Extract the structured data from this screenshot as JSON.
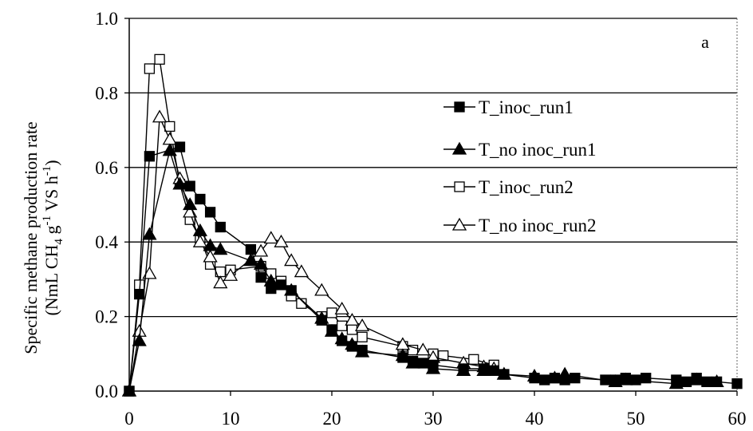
{
  "chart_data": {
    "type": "line",
    "panel_label": "a",
    "ylabel_line1": "Specific methane production rate",
    "ylabel_line2_parts": [
      "(NmL CH",
      "4",
      " g",
      "-1",
      " VS h",
      "-1",
      ")"
    ],
    "xlim": [
      0,
      60
    ],
    "ylim": [
      0,
      1.0
    ],
    "x_ticks": [
      "0",
      "10",
      "20",
      "30",
      "40",
      "50",
      "60"
    ],
    "y_ticks": [
      "0.0",
      "0.2",
      "0.4",
      "0.6",
      "0.8",
      "1.0"
    ],
    "grid": "horizontal",
    "legend_position": "right",
    "series": [
      {
        "name": "T_inoc_run1",
        "marker": "square-filled",
        "x": [
          0,
          1,
          2,
          5,
          6,
          7,
          8,
          9,
          12,
          13,
          14,
          15,
          16,
          19,
          20,
          21,
          22,
          23,
          27,
          28,
          29,
          30,
          33,
          35,
          36,
          37,
          40,
          41,
          42,
          43,
          44,
          47,
          48,
          49,
          50,
          51,
          54,
          55,
          56,
          57,
          58,
          60
        ],
        "y": [
          0,
          0.26,
          0.63,
          0.655,
          0.55,
          0.515,
          0.48,
          0.44,
          0.38,
          0.305,
          0.275,
          0.285,
          0.27,
          0.19,
          0.165,
          0.135,
          0.12,
          0.11,
          0.09,
          0.08,
          0.075,
          0.07,
          0.06,
          0.06,
          0.055,
          0.045,
          0.035,
          0.03,
          0.035,
          0.03,
          0.035,
          0.03,
          0.03,
          0.035,
          0.03,
          0.035,
          0.03,
          0.025,
          0.035,
          0.025,
          0.025,
          0.02
        ]
      },
      {
        "name": "T_no inoc_run1",
        "marker": "triangle-filled",
        "x": [
          0,
          1,
          2,
          4,
          5,
          6,
          7,
          8,
          9,
          12,
          13,
          14,
          16,
          19,
          20,
          21,
          22,
          23,
          27,
          28,
          30,
          33,
          35,
          37,
          40,
          42,
          43,
          48,
          49,
          54,
          56,
          58
        ],
        "y": [
          0,
          0.135,
          0.42,
          0.645,
          0.555,
          0.5,
          0.43,
          0.39,
          0.38,
          0.35,
          0.34,
          0.295,
          0.27,
          0.195,
          0.16,
          0.14,
          0.125,
          0.105,
          0.095,
          0.075,
          0.06,
          0.055,
          0.055,
          0.045,
          0.04,
          0.035,
          0.045,
          0.025,
          0.03,
          0.02,
          0.03,
          0.025
        ]
      },
      {
        "name": "T_inoc_run2",
        "marker": "square-open",
        "x": [
          0,
          1,
          2,
          3,
          4,
          5,
          6,
          7,
          8,
          9,
          10,
          13,
          14,
          15,
          16,
          17,
          19,
          20,
          21,
          22,
          23,
          27,
          28,
          30,
          31,
          34,
          36
        ],
        "y": [
          0,
          0.285,
          0.865,
          0.89,
          0.71,
          0.555,
          0.46,
          0.41,
          0.34,
          0.32,
          0.325,
          0.335,
          0.315,
          0.295,
          0.255,
          0.235,
          0.2,
          0.21,
          0.175,
          0.165,
          0.145,
          0.12,
          0.11,
          0.1,
          0.095,
          0.085,
          0.07
        ]
      },
      {
        "name": "T_no inoc_run2",
        "marker": "triangle-open",
        "x": [
          0,
          1,
          2,
          3,
          4,
          5,
          6,
          7,
          8,
          9,
          10,
          13,
          14,
          15,
          16,
          17,
          19,
          21,
          22,
          23,
          27,
          29,
          30,
          33,
          35,
          36,
          37
        ],
        "y": [
          0,
          0.16,
          0.315,
          0.735,
          0.675,
          0.57,
          0.48,
          0.4,
          0.36,
          0.29,
          0.31,
          0.375,
          0.41,
          0.4,
          0.35,
          0.32,
          0.27,
          0.22,
          0.19,
          0.175,
          0.125,
          0.11,
          0.09,
          0.075,
          0.065,
          0.06,
          0.045
        ]
      }
    ]
  }
}
